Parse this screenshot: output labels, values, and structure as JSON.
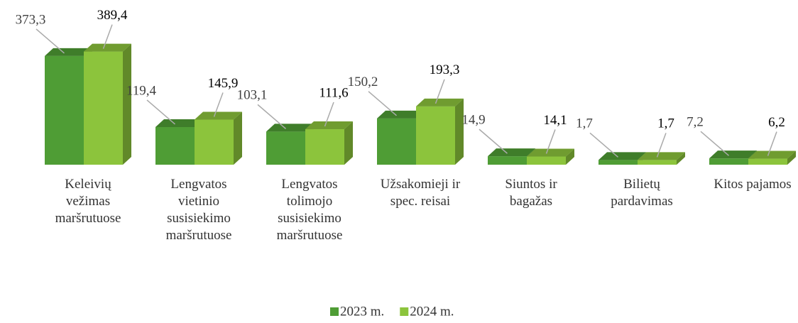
{
  "chart_data": {
    "type": "bar",
    "categories": [
      "Keleivių vežimas maršrutuose",
      "Lengvatos vietinio susisiekimo maršrutuose",
      "Lengvatos tolimojo susisiekimo maršrutuose",
      "Užsakomieji ir spec. reisai",
      "Siuntos ir bagažas",
      "Bilietų pardavimas",
      "Kitos pajamos"
    ],
    "series": [
      {
        "name": "2023 m.",
        "color": "#4f9d35",
        "values": [
          373.3,
          119.4,
          103.1,
          150.2,
          14.9,
          1.7,
          7.2
        ],
        "value_labels": [
          "373,3",
          "119,4",
          "103,1",
          "150,2",
          "14,9",
          "1,7",
          "7,2"
        ]
      },
      {
        "name": "2024 m.",
        "color": "#8cc43c",
        "values": [
          389.4,
          145.9,
          111.6,
          193.3,
          14.1,
          1.7,
          6.2
        ],
        "value_labels": [
          "389,4",
          "145,9",
          "111,6",
          "193,3",
          "14,1",
          "1,7",
          "6,2"
        ]
      }
    ],
    "legend": "bottom"
  }
}
